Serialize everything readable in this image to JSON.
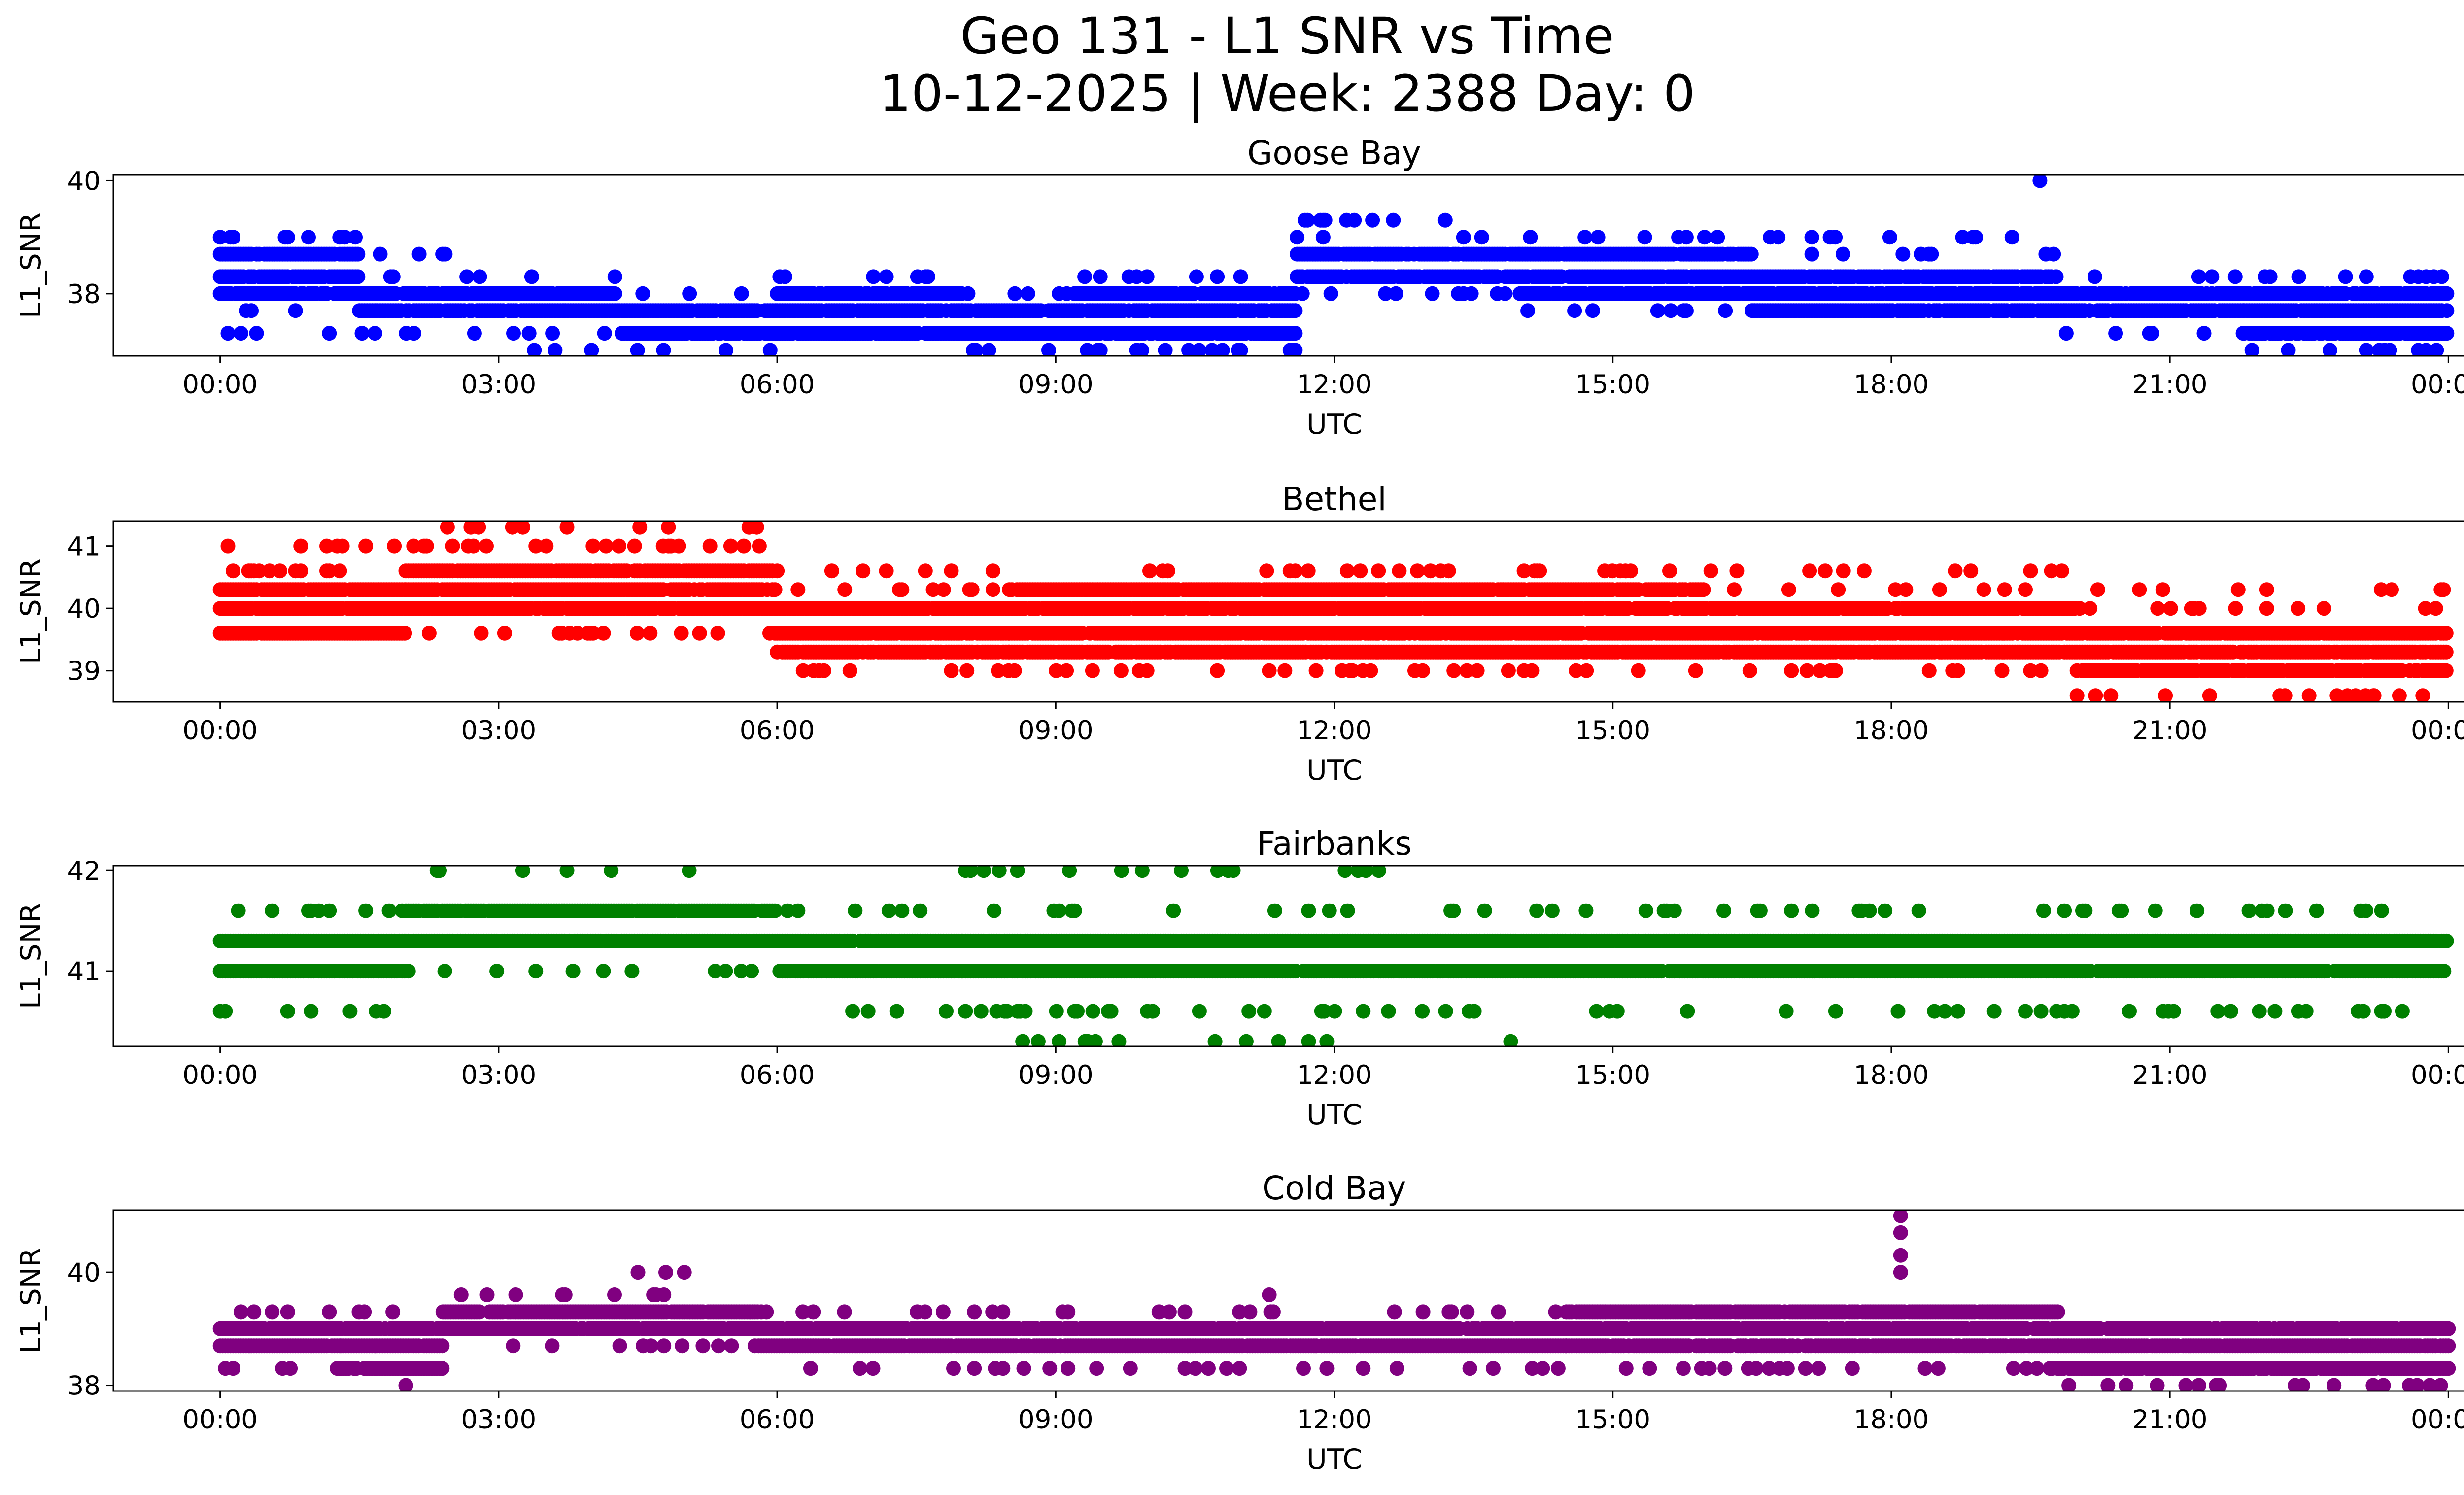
{
  "title_line1": "Geo 131 - L1 SNR vs Time",
  "title_line2": "10-12-2025 | Week: 2388 Day: 0",
  "chart_data": [
    {
      "type": "scatter",
      "title": "Goose Bay",
      "xlabel": "UTC",
      "ylabel": "L1_SNR",
      "color": "#0000ff",
      "x_ticks": [
        "00:00",
        "03:00",
        "06:00",
        "09:00",
        "12:00",
        "15:00",
        "18:00",
        "21:00",
        "00:00"
      ],
      "y_ticks": [
        38,
        40
      ],
      "ylim": [
        36.9,
        40.1
      ],
      "xlim_hours": [
        -1.15,
        25.15
      ],
      "seed": 11,
      "segments": [
        {
          "from": 0.0,
          "to": 1.5,
          "values": [
            38.7,
            38.3,
            38.0
          ],
          "sparse": [
            39.0,
            37.7,
            37.3
          ]
        },
        {
          "from": 1.5,
          "to": 2.6,
          "values": [
            38.0,
            37.7
          ],
          "sparse": [
            38.3,
            37.3,
            38.7
          ]
        },
        {
          "from": 2.6,
          "to": 4.3,
          "values": [
            38.0,
            37.7
          ],
          "sparse": [
            38.3,
            37.3,
            37.0
          ]
        },
        {
          "from": 4.3,
          "to": 6.0,
          "values": [
            37.7,
            37.3
          ],
          "sparse": [
            38.0,
            37.0
          ]
        },
        {
          "from": 6.0,
          "to": 8.0,
          "values": [
            38.0,
            37.7,
            37.3
          ],
          "sparse": [
            38.3
          ]
        },
        {
          "from": 8.0,
          "to": 9.2,
          "values": [
            37.7,
            37.3
          ],
          "sparse": [
            37.0,
            38.0
          ]
        },
        {
          "from": 9.2,
          "to": 11.6,
          "values": [
            38.0,
            37.7,
            37.3
          ],
          "sparse": [
            38.3,
            37.0
          ]
        },
        {
          "from": 11.6,
          "to": 14.0,
          "values": [
            38.7,
            38.3
          ],
          "sparse": [
            39.0,
            38.0,
            39.3
          ]
        },
        {
          "from": 14.0,
          "to": 16.5,
          "values": [
            38.7,
            38.3,
            38.0
          ],
          "sparse": [
            39.0,
            37.7
          ]
        },
        {
          "from": 16.5,
          "to": 19.8,
          "values": [
            38.3,
            38.0,
            37.7
          ],
          "sparse": [
            38.7,
            39.0
          ]
        },
        {
          "from": 19.8,
          "to": 21.8,
          "values": [
            38.0,
            37.7
          ],
          "sparse": [
            38.3,
            37.3
          ]
        },
        {
          "from": 21.8,
          "to": 24.0,
          "values": [
            38.0,
            37.7,
            37.3
          ],
          "sparse": [
            37.0,
            38.3
          ]
        }
      ],
      "outliers": [
        [
          19.6,
          40.0
        ],
        [
          11.9,
          39.3
        ]
      ]
    },
    {
      "type": "scatter",
      "title": "Bethel",
      "xlabel": "UTC",
      "ylabel": "L1_SNR",
      "color": "#ff0000",
      "x_ticks": [
        "00:00",
        "03:00",
        "06:00",
        "09:00",
        "12:00",
        "15:00",
        "18:00",
        "21:00",
        "00:00"
      ],
      "y_ticks": [
        39,
        40,
        41
      ],
      "ylim": [
        38.5,
        41.4
      ],
      "xlim_hours": [
        -1.15,
        25.15
      ],
      "seed": 23,
      "segments": [
        {
          "from": 0.0,
          "to": 2.0,
          "values": [
            40.3,
            40.0,
            39.6
          ],
          "sparse": [
            40.6,
            41.0
          ]
        },
        {
          "from": 2.0,
          "to": 6.0,
          "values": [
            40.6,
            40.3,
            40.0
          ],
          "sparse": [
            41.0,
            41.3,
            39.6
          ]
        },
        {
          "from": 6.0,
          "to": 8.5,
          "values": [
            40.0,
            39.6,
            39.3
          ],
          "sparse": [
            40.3,
            39.0,
            40.6
          ]
        },
        {
          "from": 8.5,
          "to": 16.0,
          "values": [
            40.3,
            40.0,
            39.6,
            39.3
          ],
          "sparse": [
            40.6,
            39.0
          ]
        },
        {
          "from": 16.0,
          "to": 20.0,
          "values": [
            40.0,
            39.6,
            39.3
          ],
          "sparse": [
            40.3,
            39.0,
            40.6
          ]
        },
        {
          "from": 20.0,
          "to": 24.0,
          "values": [
            39.6,
            39.3,
            39.0
          ],
          "sparse": [
            40.0,
            40.3,
            38.6
          ]
        }
      ],
      "outliers": [
        [
          22.5,
          38.6
        ],
        [
          23.2,
          38.6
        ],
        [
          20.2,
          38.6
        ],
        [
          23.0,
          38.6
        ]
      ]
    },
    {
      "type": "scatter",
      "title": "Fairbanks",
      "xlabel": "UTC",
      "ylabel": "L1_SNR",
      "color": "#008000",
      "x_ticks": [
        "00:00",
        "03:00",
        "06:00",
        "09:00",
        "12:00",
        "15:00",
        "18:00",
        "21:00",
        "00:00"
      ],
      "y_ticks": [
        41,
        42
      ],
      "ylim": [
        40.25,
        42.05
      ],
      "xlim_hours": [
        -1.15,
        25.15
      ],
      "seed": 37,
      "segments": [
        {
          "from": 0.0,
          "to": 2.0,
          "values": [
            41.3,
            41.0
          ],
          "sparse": [
            41.6,
            40.6
          ]
        },
        {
          "from": 2.0,
          "to": 6.0,
          "values": [
            41.6,
            41.3
          ],
          "sparse": [
            42.0,
            41.0
          ]
        },
        {
          "from": 6.0,
          "to": 8.0,
          "values": [
            41.3,
            41.0
          ],
          "sparse": [
            41.6,
            40.6
          ]
        },
        {
          "from": 8.0,
          "to": 12.5,
          "values": [
            41.3,
            41.0
          ],
          "sparse": [
            41.6,
            40.6,
            40.3,
            42.0
          ]
        },
        {
          "from": 12.5,
          "to": 19.5,
          "values": [
            41.3,
            41.0
          ],
          "sparse": [
            41.6,
            40.6
          ]
        },
        {
          "from": 19.5,
          "to": 24.0,
          "values": [
            41.3,
            41.0
          ],
          "sparse": [
            40.6,
            41.6
          ]
        }
      ],
      "outliers": [
        [
          11.4,
          40.3
        ],
        [
          13.9,
          40.3
        ],
        [
          3.8,
          41.0
        ]
      ]
    },
    {
      "type": "scatter",
      "title": "Cold Bay",
      "xlabel": "UTC",
      "ylabel": "L1_SNR",
      "color": "#800080",
      "x_ticks": [
        "00:00",
        "03:00",
        "06:00",
        "09:00",
        "12:00",
        "15:00",
        "18:00",
        "21:00",
        "00:00"
      ],
      "y_ticks": [
        38,
        40
      ],
      "ylim": [
        37.9,
        41.1
      ],
      "xlim_hours": [
        -1.15,
        25.15
      ],
      "seed": 53,
      "segments": [
        {
          "from": 0.0,
          "to": 1.3,
          "values": [
            39.0,
            38.7
          ],
          "sparse": [
            39.3,
            38.3
          ]
        },
        {
          "from": 1.3,
          "to": 2.4,
          "values": [
            39.0,
            38.7,
            38.3
          ],
          "sparse": [
            39.3
          ]
        },
        {
          "from": 2.4,
          "to": 5.8,
          "values": [
            39.3,
            39.0
          ],
          "sparse": [
            39.6,
            38.7
          ]
        },
        {
          "from": 5.8,
          "to": 11.5,
          "values": [
            39.0,
            38.7
          ],
          "sparse": [
            39.3,
            38.3
          ]
        },
        {
          "from": 11.5,
          "to": 14.5,
          "values": [
            39.0,
            38.7
          ],
          "sparse": [
            38.3,
            39.3
          ]
        },
        {
          "from": 14.5,
          "to": 19.8,
          "values": [
            39.3,
            39.0,
            38.7
          ],
          "sparse": [
            38.3
          ]
        },
        {
          "from": 19.8,
          "to": 24.0,
          "values": [
            39.0,
            38.7,
            38.3
          ],
          "sparse": [
            38.0
          ]
        }
      ],
      "outliers": [
        [
          4.5,
          40.0
        ],
        [
          4.8,
          40.0
        ],
        [
          5.0,
          40.0
        ],
        [
          18.1,
          41.0
        ],
        [
          18.1,
          40.7
        ],
        [
          18.1,
          40.3
        ],
        [
          18.1,
          40.0
        ],
        [
          11.3,
          39.6
        ],
        [
          2.0,
          38.0
        ],
        [
          21.5,
          38.0
        ],
        [
          23.8,
          38.0
        ]
      ]
    }
  ]
}
